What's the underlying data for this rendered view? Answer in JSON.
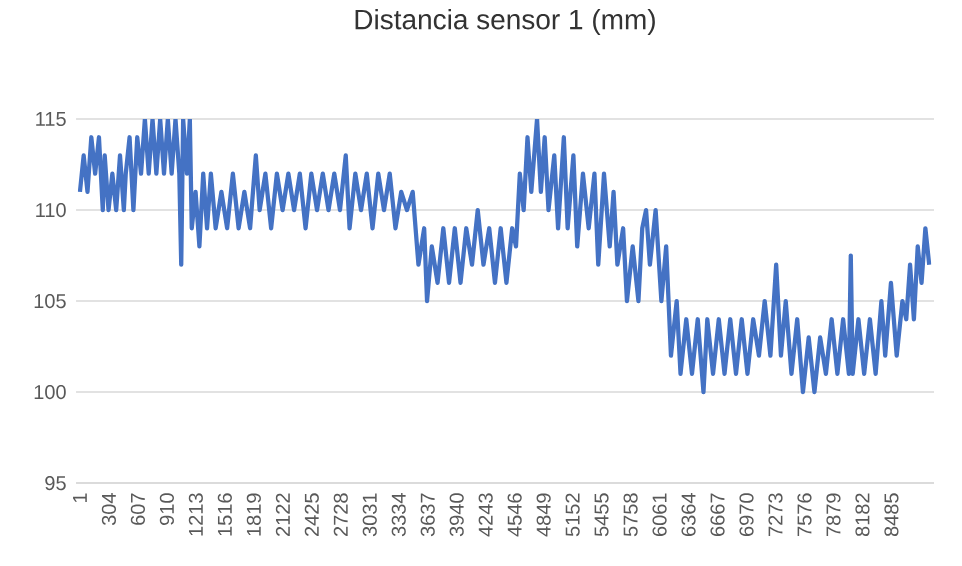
{
  "chart_data": {
    "type": "line",
    "title": "Distancia sensor 1 (mm)",
    "x": [
      1,
      40,
      80,
      120,
      160,
      200,
      240,
      260,
      300,
      340,
      380,
      420,
      460,
      480,
      520,
      560,
      600,
      640,
      680,
      720,
      760,
      800,
      840,
      880,
      920,
      960,
      1000,
      1040,
      1060,
      1080,
      1120,
      1150,
      1170,
      1210,
      1250,
      1290,
      1330,
      1370,
      1420,
      1480,
      1540,
      1600,
      1660,
      1720,
      1780,
      1840,
      1880,
      1940,
      2000,
      2060,
      2120,
      2180,
      2240,
      2300,
      2360,
      2420,
      2480,
      2540,
      2600,
      2660,
      2720,
      2780,
      2820,
      2880,
      2940,
      3000,
      3060,
      3120,
      3180,
      3240,
      3300,
      3360,
      3420,
      3480,
      3540,
      3600,
      3630,
      3680,
      3740,
      3800,
      3860,
      3920,
      3980,
      4040,
      4100,
      4160,
      4220,
      4280,
      4340,
      4400,
      4460,
      4520,
      4560,
      4600,
      4640,
      4680,
      4720,
      4780,
      4820,
      4860,
      4900,
      4960,
      5000,
      5060,
      5100,
      5160,
      5200,
      5260,
      5320,
      5380,
      5420,
      5480,
      5540,
      5580,
      5620,
      5680,
      5720,
      5780,
      5840,
      5880,
      5920,
      5960,
      6020,
      6080,
      6130,
      6180,
      6240,
      6280,
      6340,
      6400,
      6460,
      6520,
      6560,
      6620,
      6680,
      6740,
      6800,
      6860,
      6920,
      6980,
      7040,
      7100,
      7160,
      7220,
      7280,
      7330,
      7380,
      7440,
      7500,
      7560,
      7620,
      7680,
      7740,
      7800,
      7860,
      7920,
      7980,
      8040,
      8060,
      8080,
      8140,
      8200,
      8260,
      8320,
      8380,
      8420,
      8480,
      8540,
      8600,
      8640,
      8680,
      8720,
      8760,
      8800,
      8840,
      8880
    ],
    "series": [
      {
        "color": "#4472c4",
        "values": [
          111,
          113,
          111,
          114,
          112,
          114,
          110,
          113,
          110,
          112,
          110,
          113,
          110,
          112,
          114,
          110,
          114,
          112,
          115,
          112,
          115,
          112,
          115,
          112,
          115,
          112,
          115,
          112,
          107,
          115,
          112,
          115,
          109,
          111,
          108,
          112,
          109,
          112,
          109,
          111,
          109,
          112,
          109,
          111,
          109,
          113,
          110,
          112,
          109,
          112,
          110,
          112,
          110,
          112,
          109,
          112,
          110,
          112,
          110,
          112,
          110,
          113,
          109,
          112,
          110,
          112,
          109,
          112,
          110,
          112,
          109,
          111,
          110,
          111,
          107,
          109,
          105,
          108,
          106,
          109,
          106,
          109,
          106,
          109,
          107,
          110,
          107,
          109,
          106,
          109,
          106,
          109,
          108,
          112,
          110,
          114,
          111,
          115,
          111,
          114,
          110,
          113,
          109,
          114,
          109,
          113,
          108,
          112,
          109,
          112,
          107,
          112,
          108,
          111,
          107,
          109,
          105,
          108,
          105,
          109,
          110,
          107,
          110,
          105,
          108,
          102,
          105,
          101,
          104,
          101,
          104,
          100,
          104,
          101,
          104,
          101,
          104,
          101,
          104,
          101,
          104,
          102,
          105,
          102,
          107,
          102,
          105,
          101,
          104,
          100,
          103,
          100,
          103,
          101,
          104,
          101,
          104,
          101,
          107.5,
          101,
          104,
          101,
          104,
          101,
          105,
          102,
          106,
          102,
          105,
          104,
          107,
          104,
          108,
          106,
          109,
          107
        ]
      }
    ],
    "xlim": [
      -40,
      8930
    ],
    "xticks": [
      1,
      304,
      607,
      910,
      1213,
      1516,
      1819,
      2122,
      2425,
      2728,
      3031,
      3334,
      3637,
      3940,
      4243,
      4546,
      4849,
      5152,
      5455,
      5758,
      6061,
      6364,
      6667,
      6970,
      7273,
      7576,
      7879,
      8182,
      8485
    ],
    "ylim": [
      95,
      115
    ],
    "yticks": [
      95,
      100,
      105,
      110,
      115
    ],
    "grid": "y",
    "marker": "none",
    "line_style": "solid"
  }
}
